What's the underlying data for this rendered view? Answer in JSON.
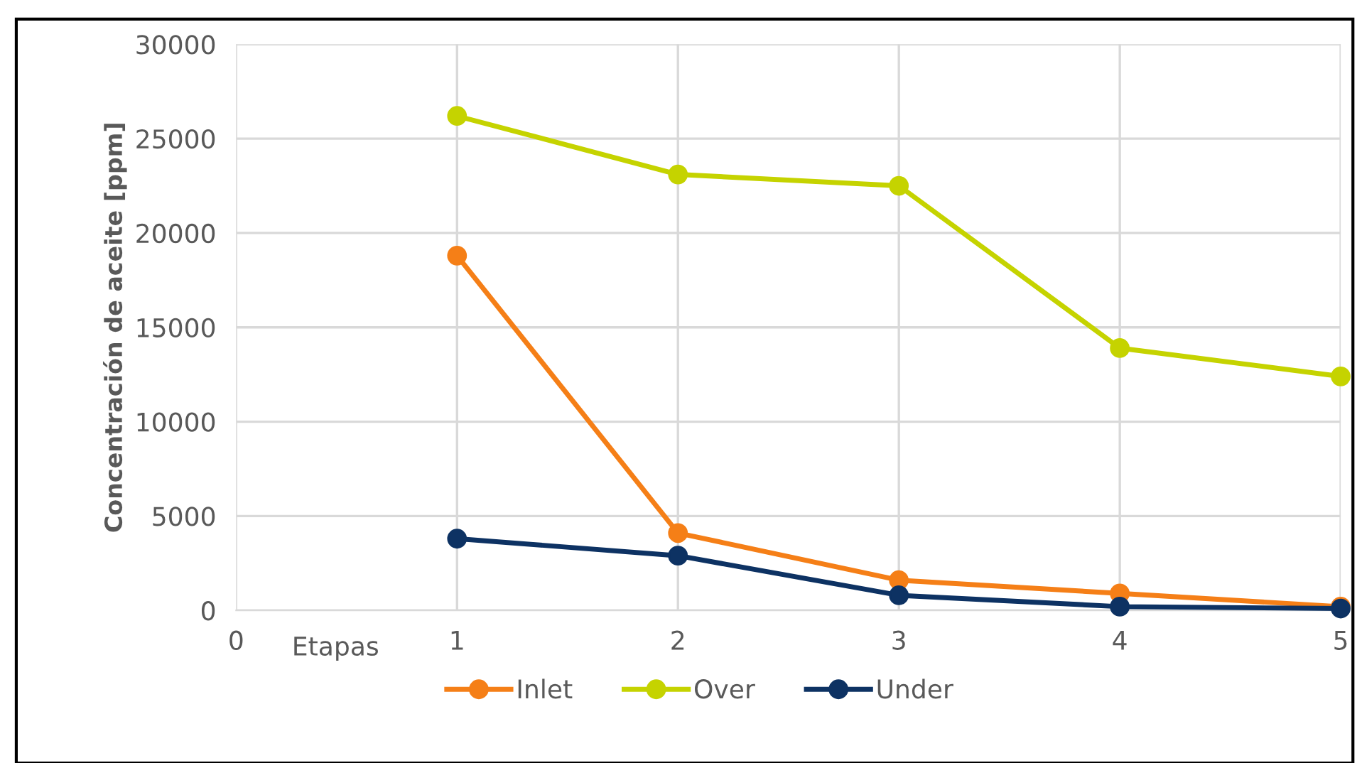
{
  "chart_data": {
    "type": "line",
    "xlabel": "Etapas",
    "ylabel": "Concentración de aceite [ppm]",
    "x": [
      1,
      2,
      3,
      4,
      5
    ],
    "series": [
      {
        "name": "Inlet",
        "color": "#f57f17",
        "values": [
          18800,
          4100,
          1600,
          900,
          200
        ]
      },
      {
        "name": "Over",
        "color": "#c5d300",
        "values": [
          26200,
          23100,
          22500,
          13900,
          12400
        ]
      },
      {
        "name": "Under",
        "color": "#0d3263",
        "values": [
          3800,
          2900,
          800,
          200,
          100
        ]
      }
    ],
    "xlim": [
      0,
      5
    ],
    "xticks": [
      0,
      1,
      2,
      3,
      4,
      5
    ],
    "ylim": [
      0,
      30000
    ],
    "yticks": [
      0,
      5000,
      10000,
      15000,
      20000,
      25000,
      30000
    ],
    "grid": true,
    "legend": "bottom",
    "marker": "circle",
    "line_style": "solid"
  }
}
